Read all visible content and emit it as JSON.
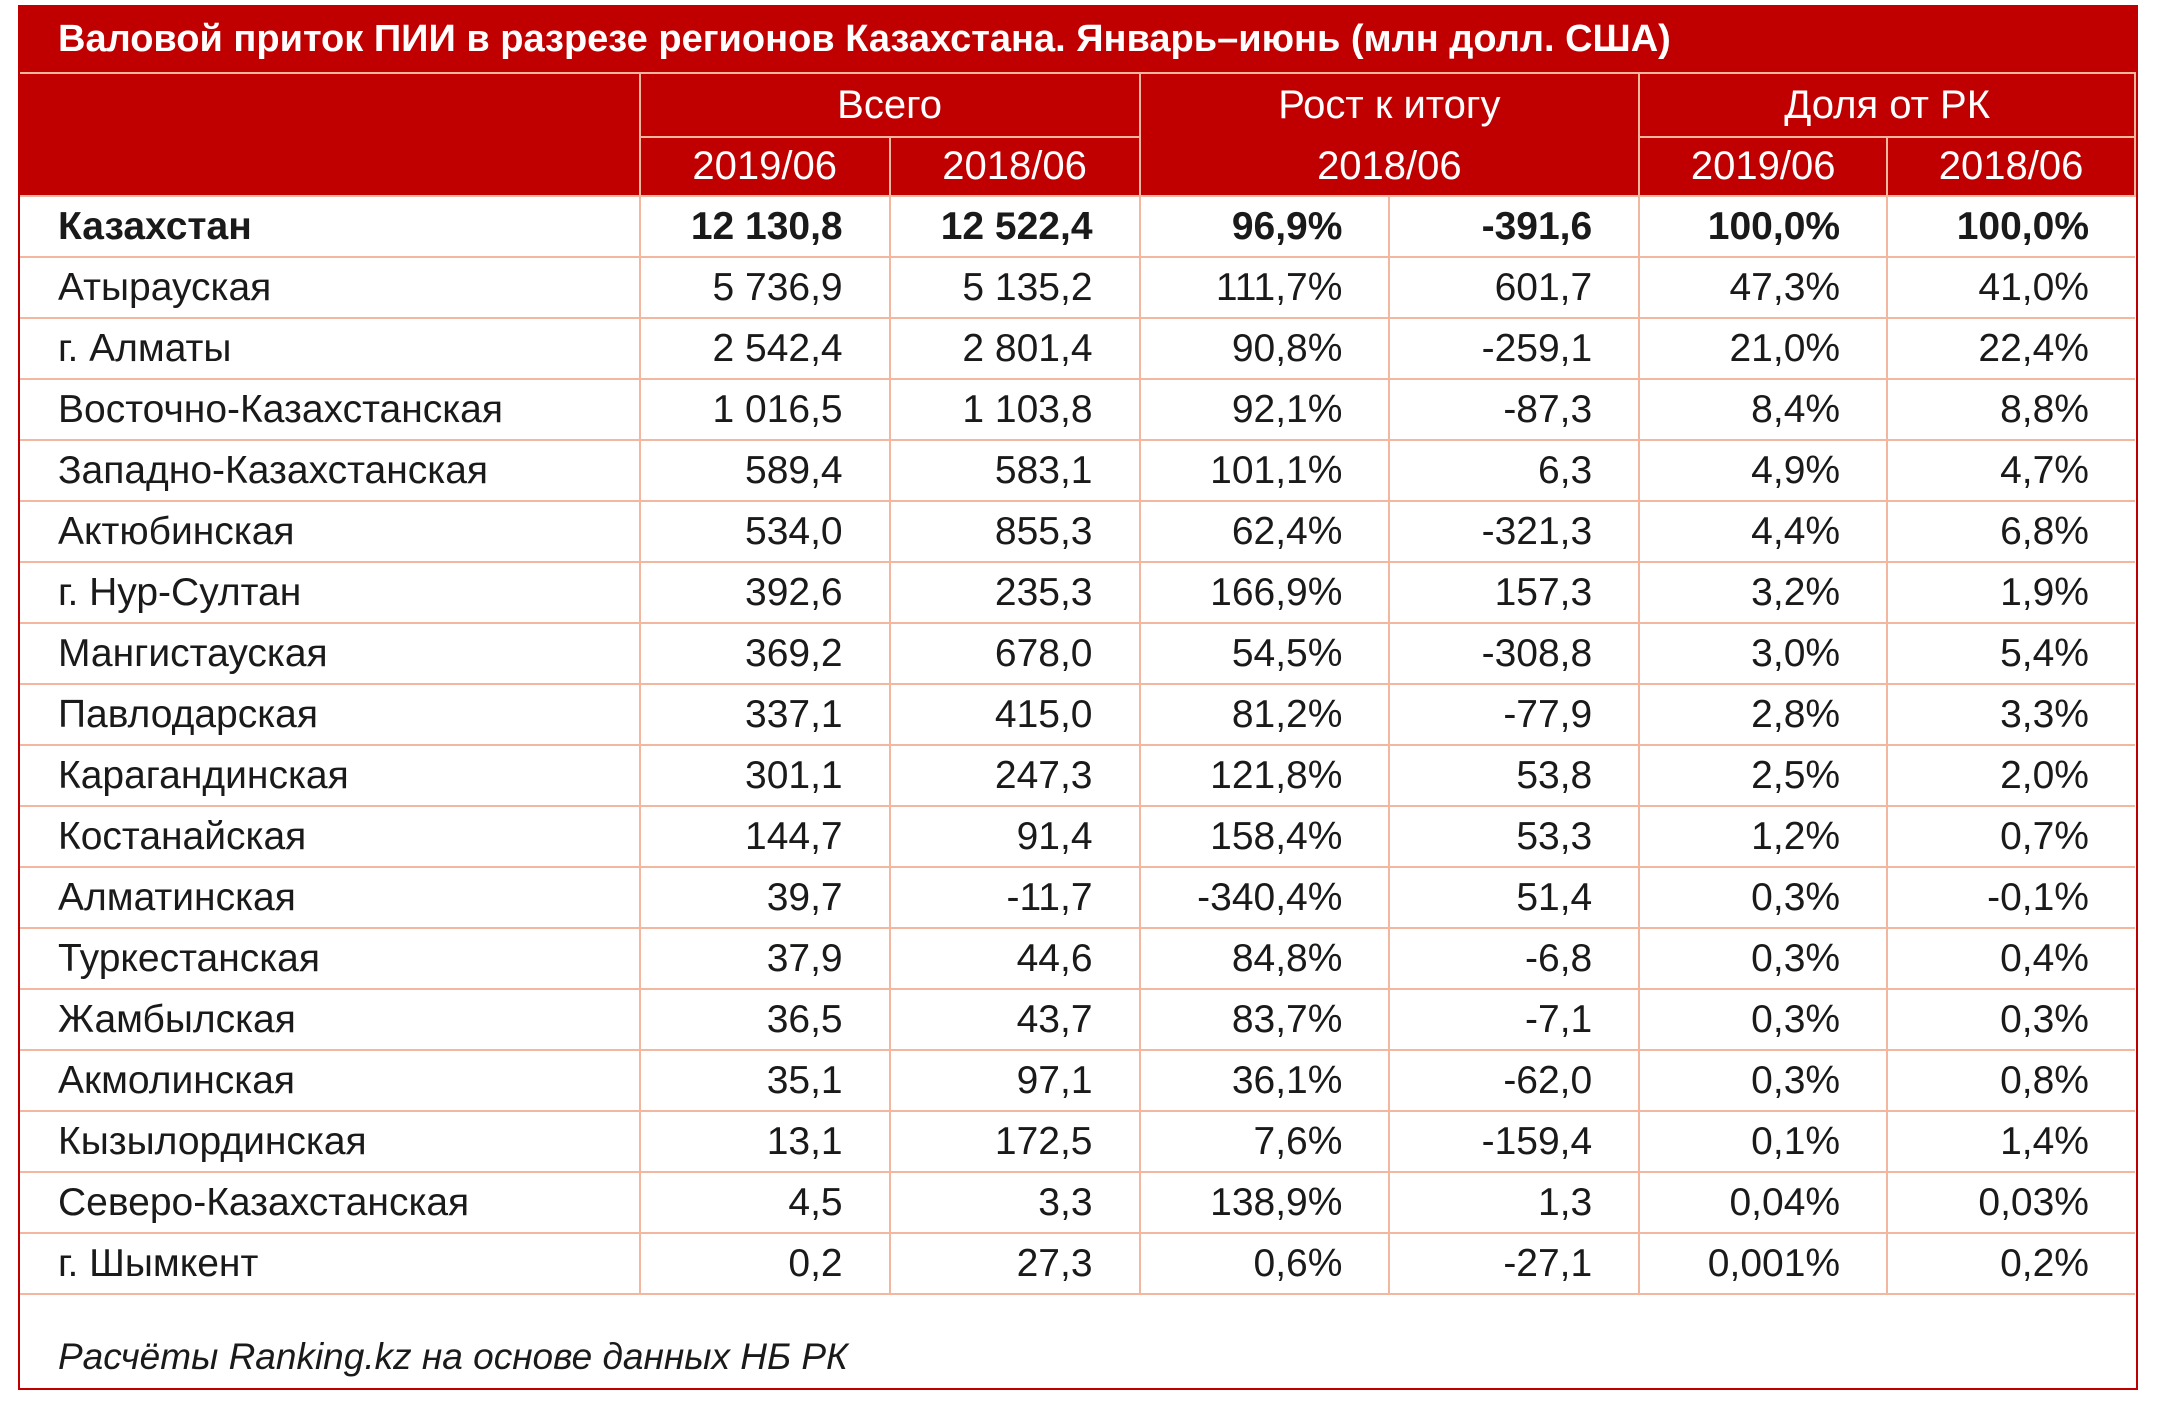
{
  "title": "Валовой приток ПИИ в разрезе регионов Казахстана. Январь–июнь (млн долл. США)",
  "source": "Расчёты Ranking.kz на основе данных НБ РК",
  "colors": {
    "header_bg": "#c00000",
    "header_text": "#ffffff",
    "grid": "#f3b7a0"
  },
  "chart_data": {
    "type": "table",
    "title": "Валовой приток ПИИ в разрезе регионов Казахстана. Январь–июнь (млн долл. США)",
    "header_groups": [
      "Всего",
      "Рост к итогу",
      "Доля от РК"
    ],
    "header_sub": [
      "2019/06",
      "2018/06",
      "2018/06",
      "2019/06",
      "2018/06"
    ],
    "rows": [
      {
        "name": "Казахстан",
        "values": [
          "12 130,8",
          "12 522,4",
          "96,9%",
          "-391,6",
          "100,0%",
          "100,0%"
        ]
      },
      {
        "name": "Атырауская",
        "values": [
          "5 736,9",
          "5 135,2",
          "111,7%",
          "601,7",
          "47,3%",
          "41,0%"
        ]
      },
      {
        "name": "г. Алматы",
        "values": [
          "2 542,4",
          "2 801,4",
          "90,8%",
          "-259,1",
          "21,0%",
          "22,4%"
        ]
      },
      {
        "name": "Восточно-Казахстанская",
        "values": [
          "1 016,5",
          "1 103,8",
          "92,1%",
          "-87,3",
          "8,4%",
          "8,8%"
        ]
      },
      {
        "name": "Западно-Казахстанская",
        "values": [
          "589,4",
          "583,1",
          "101,1%",
          "6,3",
          "4,9%",
          "4,7%"
        ]
      },
      {
        "name": "Актюбинская",
        "values": [
          "534,0",
          "855,3",
          "62,4%",
          "-321,3",
          "4,4%",
          "6,8%"
        ]
      },
      {
        "name": "г. Нур-Султан",
        "values": [
          "392,6",
          "235,3",
          "166,9%",
          "157,3",
          "3,2%",
          "1,9%"
        ]
      },
      {
        "name": "Мангистауская",
        "values": [
          "369,2",
          "678,0",
          "54,5%",
          "-308,8",
          "3,0%",
          "5,4%"
        ]
      },
      {
        "name": "Павлодарская",
        "values": [
          "337,1",
          "415,0",
          "81,2%",
          "-77,9",
          "2,8%",
          "3,3%"
        ]
      },
      {
        "name": "Карагандинская",
        "values": [
          "301,1",
          "247,3",
          "121,8%",
          "53,8",
          "2,5%",
          "2,0%"
        ]
      },
      {
        "name": "Костанайская",
        "values": [
          "144,7",
          "91,4",
          "158,4%",
          "53,3",
          "1,2%",
          "0,7%"
        ]
      },
      {
        "name": "Алматинская",
        "values": [
          "39,7",
          "-11,7",
          "-340,4%",
          "51,4",
          "0,3%",
          "-0,1%"
        ]
      },
      {
        "name": "Туркестанская",
        "values": [
          "37,9",
          "44,6",
          "84,8%",
          "-6,8",
          "0,3%",
          "0,4%"
        ]
      },
      {
        "name": "Жамбылская",
        "values": [
          "36,5",
          "43,7",
          "83,7%",
          "-7,1",
          "0,3%",
          "0,3%"
        ]
      },
      {
        "name": "Акмолинская",
        "values": [
          "35,1",
          "97,1",
          "36,1%",
          "-62,0",
          "0,3%",
          "0,8%"
        ]
      },
      {
        "name": "Кызылординская",
        "values": [
          "13,1",
          "172,5",
          "7,6%",
          "-159,4",
          "0,1%",
          "1,4%"
        ]
      },
      {
        "name": "Северо-Казахстанская",
        "values": [
          "4,5",
          "3,3",
          "138,9%",
          "1,3",
          "0,04%",
          "0,03%"
        ]
      },
      {
        "name": "г. Шымкент",
        "values": [
          "0,2",
          "27,3",
          "0,6%",
          "-27,1",
          "0,001%",
          "0,2%"
        ]
      }
    ]
  }
}
